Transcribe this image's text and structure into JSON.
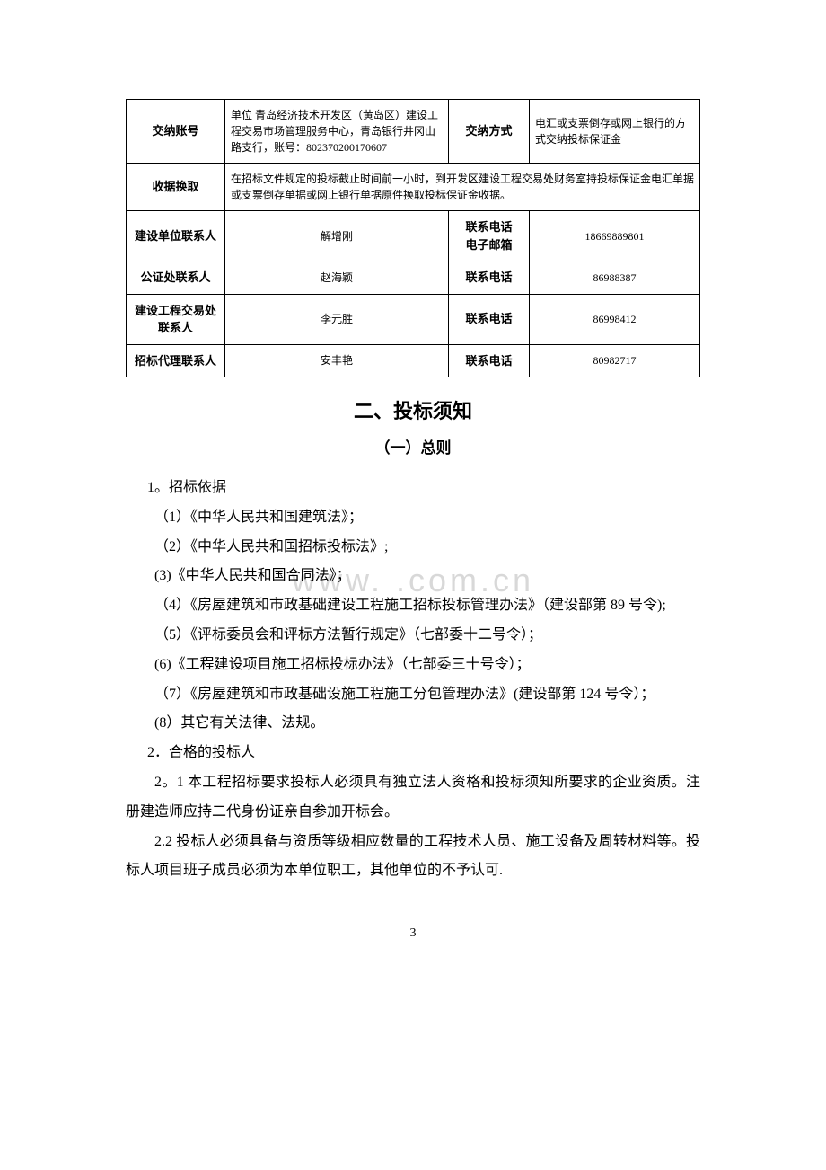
{
  "watermark": "www.    .com.cn",
  "table": {
    "rows": [
      {
        "c1": "交纳账号",
        "c2": "单位 青岛经济技术开发区（黄岛区）建设工程交易市场管理服务中心，青岛银行井冈山路支行，账号：802370200170607",
        "c3": "交纳方式",
        "c4": "电汇或支票倒存或网上银行的方式交纳投标保证金"
      },
      {
        "c1": "收据换取",
        "span": "在招标文件规定的投标截止时间前一小时，到开发区建设工程交易处财务室持投标保证金电汇单据或支票倒存单据或网上银行单据原件换取投标保证金收据。"
      },
      {
        "c1": "建设单位联系人",
        "c2": "解增刚",
        "c3": "联系电话\n电子邮箱",
        "c4": "18669889801"
      },
      {
        "c1": "公证处联系人",
        "c2": "赵海颖",
        "c3": "联系电话",
        "c4": "86988387"
      },
      {
        "c1": "建设工程交易处联系人",
        "c2": "李元胜",
        "c3": "联系电话",
        "c4": "86998412"
      },
      {
        "c1": "招标代理联系人",
        "c2": "安丰艳",
        "c3": "联系电话",
        "c4": "80982717"
      }
    ]
  },
  "heading2": "二、投标须知",
  "heading3": "（一）总则",
  "paragraphs": [
    "1。招标依据",
    "（1）《中华人民共和国建筑法》；",
    "（2）《中华人民共和国招标投标法》;",
    "(3)《中华人民共和国合同法》；",
    "（4）《房屋建筑和市政基础建设工程施工招标投标管理办法》（建设部第 89 号令);",
    "（5）《评标委员会和评标方法暂行规定》（七部委十二号令）；",
    "(6)《工程建设项目施工招标投标办法》（七部委三十号令）；",
    "（7）《房屋建筑和市政基础设施工程施工分包管理办法》(建设部第 124 号令）；",
    "(8）其它有关法律、法规。",
    "2．合格的投标人",
    "2。1 本工程招标要求投标人必须具有独立法人资格和投标须知所要求的企业资质。注册建造师应持二代身份证亲自参加开标会。",
    "2.2 投标人必须具备与资质等级相应数量的工程技术人员、施工设备及周转材料等。投标人项目班子成员必须为本单位职工，其他单位的不予认可."
  ],
  "pageNumber": "3"
}
